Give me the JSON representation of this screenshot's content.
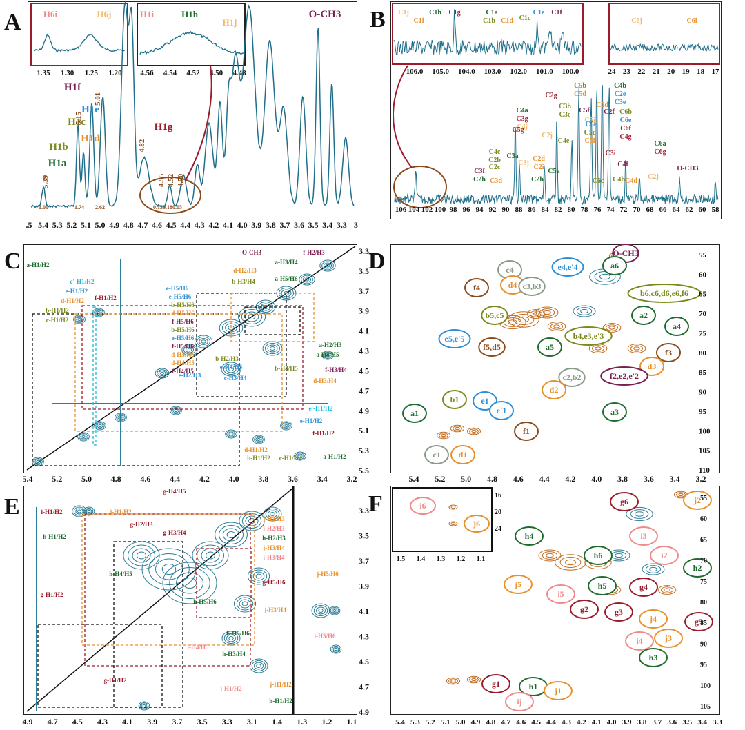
{
  "panels": {
    "A": "A",
    "B": "B",
    "C": "C",
    "D": "D",
    "E": "E",
    "F": "F"
  },
  "colors": {
    "trace": "#1f6f8b",
    "green": "#1e6b2e",
    "olive": "#7b8a1c",
    "orange": "#e8912c",
    "purple": "#7a1f4f",
    "blue": "#2b8fd8",
    "maroon": "#9b1b2a",
    "pink": "#f08a8a",
    "gray": "#8a9a8a",
    "brown": "#8b4a1a",
    "lightorange": "#f2b86c",
    "cyan": "#1fb8d8",
    "contour_teal": "#2c7d96",
    "contour_orange": "#c26a1c",
    "red": "#d9232d"
  },
  "panelA": {
    "inset1": {
      "labels": [
        "H6i",
        "H6j"
      ],
      "ticks": [
        "1.35",
        "1.30",
        "1.25",
        "1.20"
      ]
    },
    "inset2": {
      "labels": [
        "H1i",
        "H1h",
        "H1j"
      ],
      "ticks": [
        "4.56",
        "4.54",
        "4.52",
        "4.50",
        "4.48"
      ]
    },
    "peak_labels": [
      "O-CH3",
      "H1f",
      "H1e",
      "H1c",
      "H1d",
      "H1b",
      "H1a",
      "H1g"
    ],
    "shift_labels": [
      "5.39",
      "5.15",
      "5.01",
      "4.82",
      "4.55",
      "4.52",
      "4.50"
    ],
    "integrals": [
      "1.00",
      "1.74",
      "2.62",
      "0.13",
      "0.18",
      "0.05"
    ],
    "xticks": [
      ".5",
      "5.4",
      "5.3",
      "5.2",
      "5.1",
      "5.0",
      "4.9",
      "4.8",
      "4.7",
      "4.6",
      "4.5",
      "4.4",
      "4.3",
      "4.2",
      "4.1",
      "4.0",
      "3.9",
      "3.8",
      "3.7",
      "3.6",
      "3.5",
      "3.4",
      "3.3",
      "3"
    ]
  },
  "panelB": {
    "inset1": {
      "labels": [
        "C1j",
        "C1i",
        "C1h",
        "C1g",
        "C1a",
        "C1b",
        "C1d",
        "C1c",
        "C1e",
        "C1f"
      ],
      "ticks": [
        "106.0",
        "105.0",
        "104.0",
        "103.0",
        "102.0",
        "101.0",
        "100.0"
      ]
    },
    "inset2": {
      "labels": [
        "C6j",
        "C6i"
      ],
      "ticks": [
        "24",
        "23",
        "22",
        "21",
        "20",
        "19",
        "18",
        "17"
      ]
    },
    "peak_labels": [
      "C2g",
      "C5b",
      "C5d",
      "C4b",
      "C2e",
      "C3e",
      "C4a",
      "C3g",
      "C4j",
      "C3b",
      "C3c",
      "C4e",
      "C5f",
      "C5j",
      "C6d",
      "C2f",
      "C5e",
      "C5c",
      "C5i",
      "C6b",
      "C6e",
      "C6f",
      "C4g",
      "C5g",
      "C2d",
      "C2i",
      "C4c",
      "C2b",
      "C2c",
      "C3f",
      "C2h",
      "C3a",
      "C3d",
      "C3j",
      "C2h",
      "C2j",
      "C5a",
      "C3i",
      "C4f",
      "C6c",
      "C4h",
      "C4d",
      "C6a",
      "C6g",
      "C2j",
      "O-CH3"
    ],
    "xticks": [
      "106",
      "104",
      "102",
      "100",
      "98",
      "96",
      "94",
      "92",
      "90",
      "88",
      "86",
      "84",
      "82",
      "80",
      "78",
      "76",
      "74",
      "72",
      "70",
      "68",
      "66",
      "64",
      "62",
      "60",
      "58"
    ]
  },
  "panelC": {
    "xticks": [
      "5.4",
      "5.2",
      "5.0",
      "4.8",
      "4.6",
      "4.4",
      "4.2",
      "4.0",
      "3.8",
      "3.6",
      "3.4",
      "3.2"
    ],
    "yticks": [
      "3.3",
      "3.5",
      "3.7",
      "3.9",
      "4.1",
      "4.3",
      "4.5",
      "4.7",
      "4.9",
      "5.1",
      "5.3",
      "5.5"
    ],
    "labels": [
      "a-H1/H2",
      "e'-H1/H2",
      "e-H1/H2",
      "d-H1/H2",
      "f-H1/H2",
      "b-H1/H2",
      "c-H1/H2",
      "O-CH3",
      "f-H2/H3",
      "a-H3/H4",
      "d-H2/H3",
      "e-H5/H6",
      "a-H5/H6",
      "b-H3/H4",
      "e-H5/H6",
      "b-H5/H6",
      "d-H5/H6",
      "f-H5/H6",
      "b-H5/H6",
      "e-H5/H6",
      "f-H5/H6",
      "d-H5/H6",
      "d-H4/H5",
      "f-H4/H5",
      "b-H2/H3",
      "e-H4/H5",
      "c-H3/H4",
      "e-H2/H3",
      "b-H4/H5",
      "a-H2/H3",
      "a-H4/H5",
      "f-H3/H4",
      "d-H3/H4",
      "e'-H1/H2",
      "e-H1/H2",
      "f-H1/H2",
      "d-H1/H2",
      "b-H1/H2",
      "c-H1/H2",
      "a-H1/H2"
    ]
  },
  "panelD": {
    "xticks": [
      "5.4",
      "5.2",
      "5.0",
      "4.8",
      "4.6",
      "4.4",
      "4.2",
      "4.0",
      "3.8",
      "3.6",
      "3.4",
      "3.2"
    ],
    "yticks": [
      "55",
      "60",
      "65",
      "70",
      "75",
      "80",
      "85",
      "90",
      "95",
      "100",
      "105",
      "110"
    ],
    "labels": [
      "O-CH3",
      "a6",
      "e4,e'4",
      "c4",
      "d4",
      "c3,b3",
      "f4",
      "b6,c6,d6,e6,f6",
      "b5,c5",
      "a2",
      "a4",
      "e5,e'5",
      "b4,e3,e'3",
      "f5,d5",
      "a5",
      "f3",
      "d3",
      "f2,e2,e'2",
      "c2,b2",
      "d2",
      "a3",
      "a1",
      "b1",
      "e1",
      "e'1",
      "f1",
      "c1",
      "d1"
    ]
  },
  "panelE": {
    "xticks": [
      "4.9",
      "4.7",
      "4.5",
      "4.3",
      "4.1",
      "3.9",
      "3.7",
      "3.5",
      "3.3",
      "3.1",
      "1.4",
      "1.3",
      "1.2",
      "1.1"
    ],
    "yticks": [
      "3.3",
      "3.5",
      "3.7",
      "3.9",
      "4.1",
      "4.3",
      "4.5",
      "4.7",
      "4.9"
    ],
    "labels": [
      "i-H1/H2",
      "j-H1/H2",
      "h-H1/H2",
      "g-H4/H5",
      "g-H2/H3",
      "g-H3/H4",
      "j-H2/H3",
      "i-H2/H3",
      "h-H2/H3",
      "j-H3/H4",
      "i-H3/H4",
      "h-H4/H5",
      "g-H5/H6",
      "j-H5/H6",
      "g-H1/H2",
      "h-H5/H6",
      "j-H3/H4",
      "h-H5/H6",
      "i-H4/H5",
      "h-H3/H4",
      "i-H5/H6",
      "g-H1/H2",
      "i-H1/H2",
      "j-H1/H2",
      "h-H1/H2"
    ]
  },
  "panelF": {
    "inset": {
      "labels": [
        "i6",
        "j6"
      ],
      "xticks": [
        "1.5",
        "1.4",
        "1.3",
        "1.2",
        "1.1"
      ],
      "yticks": [
        "16",
        "20",
        "24"
      ]
    },
    "xticks": [
      "5.4",
      "5.3",
      "5.2",
      "5.1",
      "5.0",
      "4.9",
      "4.8",
      "4.7",
      "4.6",
      "4.5",
      "4.4",
      "4.3",
      "4.2",
      "4.1",
      "4.0",
      "3.9",
      "3.8",
      "3.7",
      "3.6",
      "3.5",
      "3.4",
      "3.3"
    ],
    "yticks": [
      "55",
      "60",
      "65",
      "70",
      "75",
      "80",
      "85",
      "90",
      "95",
      "100",
      "105"
    ],
    "labels": [
      "g6",
      "j2",
      "h4",
      "i3",
      "h6",
      "i2",
      "h2",
      "j5",
      "i5",
      "h5",
      "g4",
      "g2",
      "g3",
      "g5",
      "j4",
      "j3",
      "i4",
      "h3",
      "g1",
      "h1",
      "j1",
      "ij"
    ]
  }
}
